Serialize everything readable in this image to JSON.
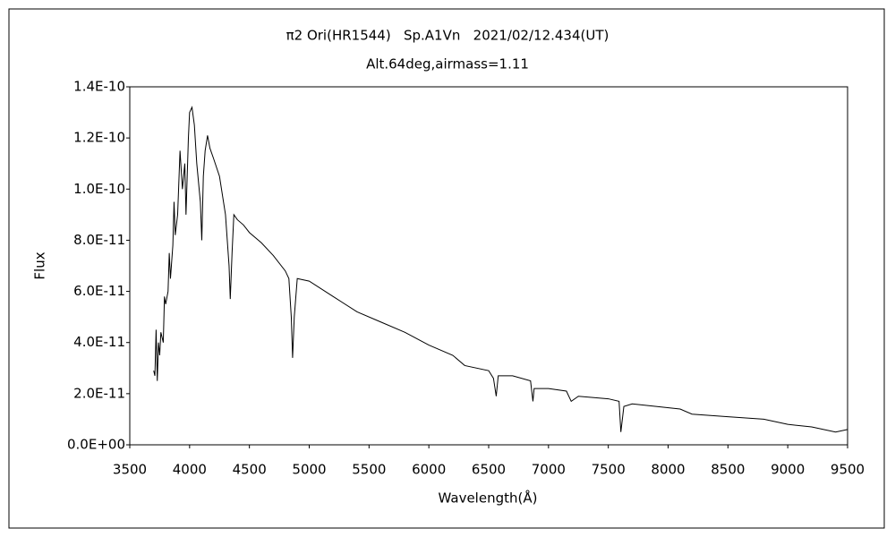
{
  "chart_data": {
    "type": "line",
    "title": "π2 Ori(HR1544)   Sp.A1Vn   2021/02/12.434(UT)",
    "subtitle": "Alt.64deg,airmass=1.11",
    "x_label": "Wavelength(Å)",
    "y_label": "Flux",
    "xlim": [
      3500,
      9500
    ],
    "xticks": [
      3500,
      4000,
      4500,
      5000,
      5500,
      6000,
      6500,
      7000,
      7500,
      8000,
      8500,
      9000,
      9500
    ],
    "ylim": [
      0,
      1.4e-10
    ],
    "yticks": [
      {
        "value": 0,
        "label": "0.0E+00"
      },
      {
        "value": 2e-11,
        "label": "2.0E-11"
      },
      {
        "value": 4e-11,
        "label": "4.0E-11"
      },
      {
        "value": 6e-11,
        "label": "6.0E-11"
      },
      {
        "value": 8e-11,
        "label": "8.0E-11"
      },
      {
        "value": 1e-10,
        "label": "1.0E-10"
      },
      {
        "value": 1.2e-10,
        "label": "1.2E-10"
      },
      {
        "value": 1.4e-10,
        "label": "1.4E-10"
      }
    ],
    "series": [
      {
        "name": "Flux",
        "color": "#000000",
        "x": [
          3700,
          3710,
          3720,
          3730,
          3740,
          3750,
          3760,
          3780,
          3790,
          3800,
          3820,
          3830,
          3840,
          3860,
          3870,
          3880,
          3900,
          3920,
          3940,
          3960,
          3970,
          3990,
          4000,
          4020,
          4040,
          4060,
          4090,
          4102,
          4115,
          4130,
          4150,
          4170,
          4200,
          4250,
          4300,
          4330,
          4340,
          4355,
          4370,
          4400,
          4450,
          4500,
          4600,
          4700,
          4800,
          4830,
          4850,
          4861,
          4875,
          4900,
          5000,
          5200,
          5400,
          5600,
          5800,
          6000,
          6200,
          6300,
          6500,
          6540,
          6563,
          6580,
          6700,
          6850,
          6870,
          6880,
          7000,
          7150,
          7190,
          7250,
          7500,
          7590,
          7605,
          7630,
          7700,
          7900,
          8100,
          8200,
          8500,
          8800,
          9000,
          9200,
          9400,
          9500
        ],
        "values": [
          2.9e-11,
          2.7e-11,
          4.5e-11,
          2.5e-11,
          4e-11,
          3.5e-11,
          4.4e-11,
          4e-11,
          5.8e-11,
          5.5e-11,
          6e-11,
          7.5e-11,
          6.5e-11,
          7.8e-11,
          9.5e-11,
          8.2e-11,
          9e-11,
          1.15e-10,
          1e-10,
          1.1e-10,
          9e-11,
          1.2e-10,
          1.3e-10,
          1.32e-10,
          1.25e-10,
          1.1e-10,
          9.5e-11,
          8e-11,
          1.05e-10,
          1.15e-10,
          1.21e-10,
          1.16e-10,
          1.12e-10,
          1.05e-10,
          9e-11,
          7e-11,
          5.7e-11,
          7.5e-11,
          9e-11,
          8.8e-11,
          8.6e-11,
          8.3e-11,
          7.9e-11,
          7.4e-11,
          6.8e-11,
          6.5e-11,
          5e-11,
          3.4e-11,
          5e-11,
          6.5e-11,
          6.4e-11,
          5.8e-11,
          5.2e-11,
          4.8e-11,
          4.4e-11,
          3.9e-11,
          3.5e-11,
          3.1e-11,
          2.9e-11,
          2.6e-11,
          1.9e-11,
          2.7e-11,
          2.7e-11,
          2.5e-11,
          1.7e-11,
          2.2e-11,
          2.2e-11,
          2.1e-11,
          1.7e-11,
          1.9e-11,
          1.8e-11,
          1.7e-11,
          5e-12,
          1.5e-11,
          1.6e-11,
          1.5e-11,
          1.4e-11,
          1.2e-11,
          1.1e-11,
          1e-11,
          8e-12,
          7e-12,
          5e-12,
          6e-12
        ]
      }
    ]
  }
}
